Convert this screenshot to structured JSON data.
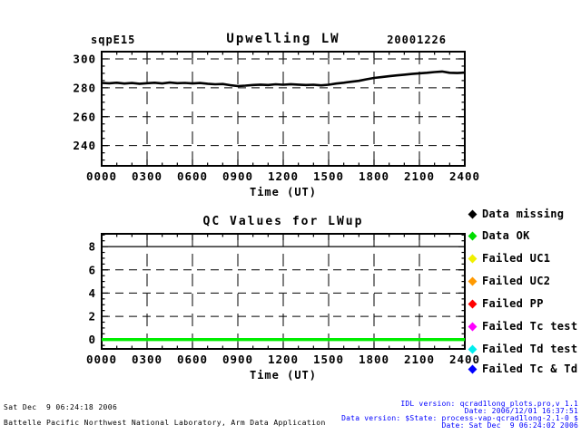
{
  "accent_colors": {
    "qc_ok_green": "#00ee00",
    "footer_info_blue": "#0000ff",
    "plot_ink": "#000000"
  },
  "chart_data": [
    {
      "type": "line",
      "title": "Upwelling LW",
      "left_label": "sqpE15",
      "right_label": "20001226",
      "xlabel": "Time (UT)",
      "ylabel": "",
      "xlim": [
        0,
        24
      ],
      "ylim": [
        226,
        305
      ],
      "x_tick_values": [
        0,
        3,
        6,
        9,
        12,
        15,
        18,
        21,
        24
      ],
      "x_tick_labels": [
        "0000",
        "0300",
        "0600",
        "0900",
        "1200",
        "1500",
        "1800",
        "2100",
        "2400"
      ],
      "x_minor_step": 1,
      "y_ticks": [
        240,
        260,
        280,
        300
      ],
      "y_minor_step": 5,
      "grid_x_dashed": [
        3,
        6,
        9,
        12,
        15,
        18,
        21
      ],
      "grid_y_dashed": [
        240,
        260,
        280,
        300
      ],
      "grid_y_solid": [],
      "line_color": "#000000",
      "line_width": 2.6,
      "grid": true,
      "legend_position": "none",
      "x": [
        0,
        0.5,
        1,
        1.5,
        2,
        2.5,
        3,
        3.5,
        4,
        4.5,
        5,
        5.5,
        6,
        6.5,
        7,
        7.5,
        8,
        8.5,
        9,
        9.5,
        10,
        10.5,
        11,
        11.5,
        12,
        12.5,
        13,
        13.5,
        14,
        14.5,
        15,
        15.5,
        16,
        16.5,
        17,
        17.5,
        18,
        18.5,
        19,
        19.5,
        20,
        20.5,
        21,
        21.5,
        22,
        22.5,
        23,
        23.5,
        24
      ],
      "y": [
        283.4,
        283.1,
        283.5,
        282.9,
        283.3,
        282.8,
        283.2,
        283.5,
        283.0,
        283.6,
        283.2,
        283.4,
        283.0,
        283.3,
        282.8,
        282.4,
        282.6,
        281.8,
        281.2,
        281.5,
        281.9,
        282.2,
        281.9,
        282.4,
        282.1,
        282.5,
        282.2,
        281.9,
        282.1,
        281.7,
        282.1,
        282.9,
        283.5,
        284.2,
        284.8,
        285.9,
        286.8,
        287.4,
        288.0,
        288.6,
        289.1,
        289.6,
        290.0,
        290.4,
        290.9,
        291.3,
        290.4,
        290.2,
        290.5
      ]
    },
    {
      "type": "line",
      "title": "QC Values for LWup",
      "left_label": "",
      "right_label": "",
      "xlabel": "Time (UT)",
      "ylabel": "",
      "xlim": [
        0,
        24
      ],
      "ylim": [
        -0.8,
        9.1
      ],
      "x_tick_values": [
        0,
        3,
        6,
        9,
        12,
        15,
        18,
        21,
        24
      ],
      "x_tick_labels": [
        "0000",
        "0300",
        "0600",
        "0900",
        "1200",
        "1500",
        "1800",
        "2100",
        "2400"
      ],
      "x_minor_step": 1,
      "y_ticks": [
        0,
        2,
        4,
        6,
        8
      ],
      "y_minor_step": 0.5,
      "grid_x_dashed": [
        3,
        6,
        9,
        12,
        15,
        18,
        21
      ],
      "grid_y_dashed": [
        2,
        4,
        6
      ],
      "grid_y_solid": [
        8
      ],
      "line_color": "#00ee00",
      "line_width": 3.4,
      "grid": true,
      "legend_position": "right",
      "x": [
        0,
        24
      ],
      "y": [
        0,
        0
      ]
    }
  ],
  "legend": {
    "items": [
      {
        "label": "Data missing",
        "color": "#000000"
      },
      {
        "label": "Data OK",
        "color": "#00dd00"
      },
      {
        "label": "Failed UC1",
        "color": "#f0f000"
      },
      {
        "label": "Failed UC2",
        "color": "#ff9900"
      },
      {
        "label": "Failed PP",
        "color": "#ff0000"
      },
      {
        "label": "Failed Tc test",
        "color": "#ff00ff"
      },
      {
        "label": "Failed Td test",
        "color": "#00eeee"
      },
      {
        "label": "Failed Tc & Td",
        "color": "#0000ff"
      }
    ]
  },
  "footer": {
    "left_line1": "Sat Dec  9 06:24:18 2006",
    "left_line2": "Battelle Pacific Northwest National Laboratory, Arm Data Application",
    "right_line1": "IDL version: qcrad1long_plots.pro,v 1.1",
    "right_line2": "Date: 2006/12/01 16:37:51",
    "right_line3": "Data version: $State: process-vap-qcrad1long-2.1-0 $",
    "right_line4": "Date: Sat Dec  9 06:24:02 2006"
  }
}
